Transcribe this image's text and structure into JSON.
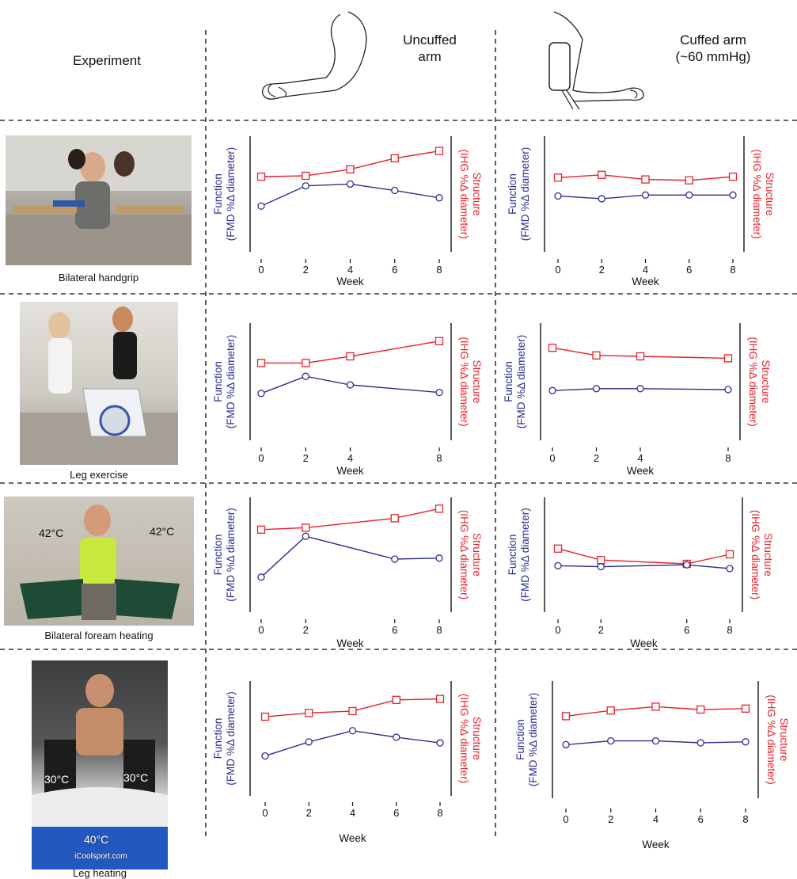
{
  "headers": {
    "experiment": "Experiment",
    "uncuffed": "Uncuffed\narm",
    "cuffed": "Cuffed arm\n(~60 mmHg)"
  },
  "rows": [
    {
      "label": "Bilateral handgrip",
      "photo_overlays": []
    },
    {
      "label": "Leg exercise",
      "photo_overlays": []
    },
    {
      "label": "Bilateral foream heating",
      "photo_overlays": [
        "42°C",
        "42°C"
      ]
    },
    {
      "label": "Leg heating",
      "photo_overlays": [
        "30°C",
        "30°C",
        "40°C",
        "iCoolsport.com"
      ]
    }
  ],
  "axis_text": {
    "xlabel": "Week",
    "left_ylabel_line1": "Function",
    "left_ylabel_line2": "(FMD %Δ diameter)",
    "right_ylabel_line1": "Structure",
    "right_ylabel_line2": "(IHG %Δ diameter)"
  },
  "colors": {
    "function": "#2b2f8f",
    "structure": "#e8202a",
    "axis": "#111111",
    "divider": "#333333"
  },
  "chart_data": [
    {
      "type": "line",
      "row": 0,
      "arm": "uncuffed",
      "x": [
        0,
        2,
        4,
        6,
        8
      ],
      "xticks": [
        0,
        2,
        4,
        6,
        8
      ],
      "xlim": [
        0,
        8
      ],
      "ylim": [
        0,
        10
      ],
      "series": [
        {
          "name": "Structure",
          "values": [
            6.8,
            6.9,
            7.6,
            8.8,
            9.6
          ]
        },
        {
          "name": "Function",
          "values": [
            3.6,
            5.8,
            6.0,
            5.3,
            4.5
          ]
        }
      ]
    },
    {
      "type": "line",
      "row": 0,
      "arm": "cuffed",
      "x": [
        0,
        2,
        4,
        6,
        8
      ],
      "xticks": [
        0,
        2,
        4,
        6,
        8
      ],
      "xlim": [
        0,
        8
      ],
      "ylim": [
        0,
        10
      ],
      "series": [
        {
          "name": "Structure",
          "values": [
            6.7,
            7.0,
            6.5,
            6.4,
            6.8
          ]
        },
        {
          "name": "Function",
          "values": [
            4.7,
            4.4,
            4.8,
            4.8,
            4.8
          ]
        }
      ]
    },
    {
      "type": "line",
      "row": 1,
      "arm": "uncuffed",
      "x": [
        0,
        2,
        4,
        8
      ],
      "xticks": [
        0,
        2,
        4,
        8
      ],
      "xlim": [
        0,
        8
      ],
      "ylim": [
        0,
        10
      ],
      "series": [
        {
          "name": "Structure",
          "values": [
            6.8,
            6.8,
            7.5,
            9.1
          ]
        },
        {
          "name": "Function",
          "values": [
            3.6,
            5.4,
            4.5,
            3.7
          ]
        }
      ]
    },
    {
      "type": "line",
      "row": 1,
      "arm": "cuffed",
      "x": [
        0,
        2,
        4,
        8
      ],
      "xticks": [
        0,
        2,
        4,
        8
      ],
      "xlim": [
        0,
        8
      ],
      "ylim": [
        0,
        10
      ],
      "series": [
        {
          "name": "Structure",
          "values": [
            8.4,
            7.6,
            7.5,
            7.3
          ]
        },
        {
          "name": "Function",
          "values": [
            3.9,
            4.1,
            4.1,
            4.0
          ]
        }
      ]
    },
    {
      "type": "line",
      "row": 2,
      "arm": "uncuffed",
      "x": [
        0,
        2,
        6,
        8
      ],
      "xticks": [
        0,
        2,
        6,
        8
      ],
      "xlim": [
        0,
        8
      ],
      "ylim": [
        0,
        10
      ],
      "series": [
        {
          "name": "Structure",
          "values": [
            7.6,
            7.8,
            8.8,
            9.8
          ]
        },
        {
          "name": "Function",
          "values": [
            2.6,
            6.9,
            4.5,
            4.6
          ]
        }
      ]
    },
    {
      "type": "line",
      "row": 2,
      "arm": "cuffed",
      "x": [
        0,
        2,
        6,
        8
      ],
      "xticks": [
        0,
        2,
        6,
        8
      ],
      "xlim": [
        0,
        8
      ],
      "ylim": [
        0,
        10
      ],
      "series": [
        {
          "name": "Structure",
          "values": [
            5.6,
            4.4,
            4.0,
            5.0
          ]
        },
        {
          "name": "Function",
          "values": [
            3.8,
            3.7,
            3.9,
            3.5
          ]
        }
      ]
    },
    {
      "type": "line",
      "row": 3,
      "arm": "uncuffed",
      "x": [
        0,
        2,
        4,
        6,
        8
      ],
      "xticks": [
        0,
        2,
        4,
        6,
        8
      ],
      "xlim": [
        0,
        8
      ],
      "ylim": [
        0,
        10
      ],
      "series": [
        {
          "name": "Structure",
          "values": [
            7.2,
            7.6,
            7.8,
            9.0,
            9.1
          ]
        },
        {
          "name": "Function",
          "values": [
            3.0,
            4.5,
            5.7,
            5.0,
            4.4
          ]
        }
      ]
    },
    {
      "type": "line",
      "row": 3,
      "arm": "cuffed",
      "x": [
        0,
        2,
        4,
        6,
        8
      ],
      "xticks": [
        0,
        2,
        4,
        6,
        8
      ],
      "xlim": [
        0,
        8
      ],
      "ylim": [
        0,
        10
      ],
      "series": [
        {
          "name": "Structure",
          "values": [
            7.3,
            7.9,
            8.3,
            8.0,
            8.1
          ]
        },
        {
          "name": "Function",
          "values": [
            4.3,
            4.7,
            4.7,
            4.5,
            4.6
          ]
        }
      ]
    }
  ]
}
